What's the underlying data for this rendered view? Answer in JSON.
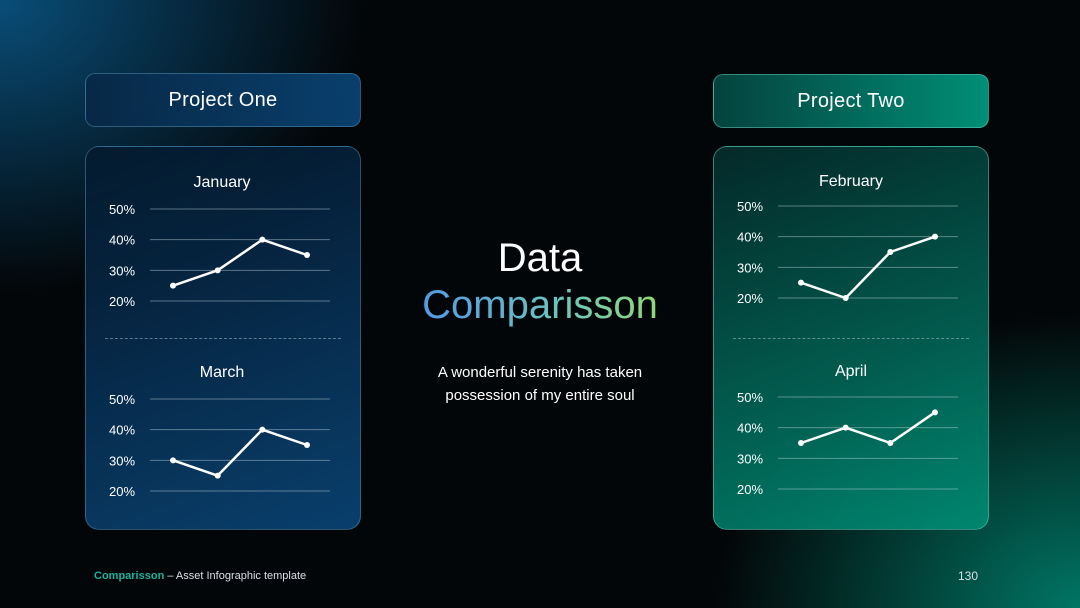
{
  "slide": {
    "left_header": "Project One",
    "right_header": "Project Two",
    "title_line1": "Data",
    "title_line2": "Comparisson",
    "subtitle_line1": "A wonderful serenity has taken",
    "subtitle_line2": "possession of my entire soul",
    "footer_brand": "Comparisson",
    "footer_rest": " – Asset Infographic  template",
    "page_number": "130",
    "colors": {
      "left_accent": "#0a5a8c",
      "right_accent": "#00967d",
      "footer_brand": "#19b3a0"
    }
  },
  "chart_data": [
    {
      "type": "line",
      "title": "January",
      "ytick_labels": [
        "50%",
        "40%",
        "30%",
        "20%"
      ],
      "ylim": [
        20,
        50
      ],
      "grid": true,
      "series": [
        {
          "values": [
            25,
            30,
            40,
            35
          ]
        }
      ]
    },
    {
      "type": "line",
      "title": "March",
      "ytick_labels": [
        "50%",
        "40%",
        "30%",
        "20%"
      ],
      "ylim": [
        20,
        50
      ],
      "grid": true,
      "series": [
        {
          "values": [
            30,
            25,
            40,
            35
          ]
        }
      ]
    },
    {
      "type": "line",
      "title": "February",
      "ytick_labels": [
        "50%",
        "40%",
        "30%",
        "20%"
      ],
      "ylim": [
        20,
        50
      ],
      "grid": true,
      "series": [
        {
          "values": [
            25,
            20,
            35,
            40
          ]
        }
      ]
    },
    {
      "type": "line",
      "title": "April",
      "ytick_labels": [
        "50%",
        "40%",
        "30%",
        "20%"
      ],
      "ylim": [
        20,
        50
      ],
      "grid": true,
      "series": [
        {
          "values": [
            35,
            40,
            35,
            45
          ]
        }
      ]
    }
  ]
}
